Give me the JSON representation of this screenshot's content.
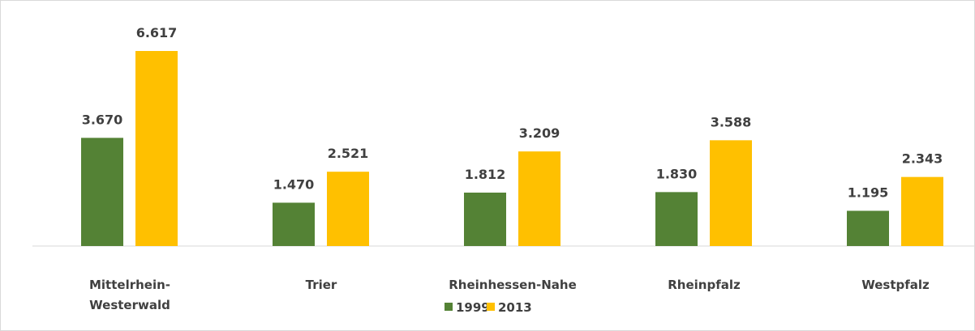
{
  "chart_data": {
    "type": "bar",
    "categories": [
      "Mittelrhein-\nWesterwald",
      "Trier",
      "Rheinhessen-Nahe",
      "Rheinpfalz",
      "Westpfalz"
    ],
    "series": [
      {
        "name": "1999",
        "color": "#548235",
        "values": [
          3670,
          1470,
          1812,
          1830,
          1195
        ],
        "value_labels": [
          "3.670",
          "1.470",
          "1.812",
          "1.830",
          "1.195"
        ]
      },
      {
        "name": "2013",
        "color": "#ffc000",
        "values": [
          6617,
          2521,
          3209,
          3588,
          2343
        ],
        "value_labels": [
          "6.617",
          "2.521",
          "3.209",
          "3.588",
          "2.343"
        ]
      }
    ],
    "legend": "bottom"
  }
}
